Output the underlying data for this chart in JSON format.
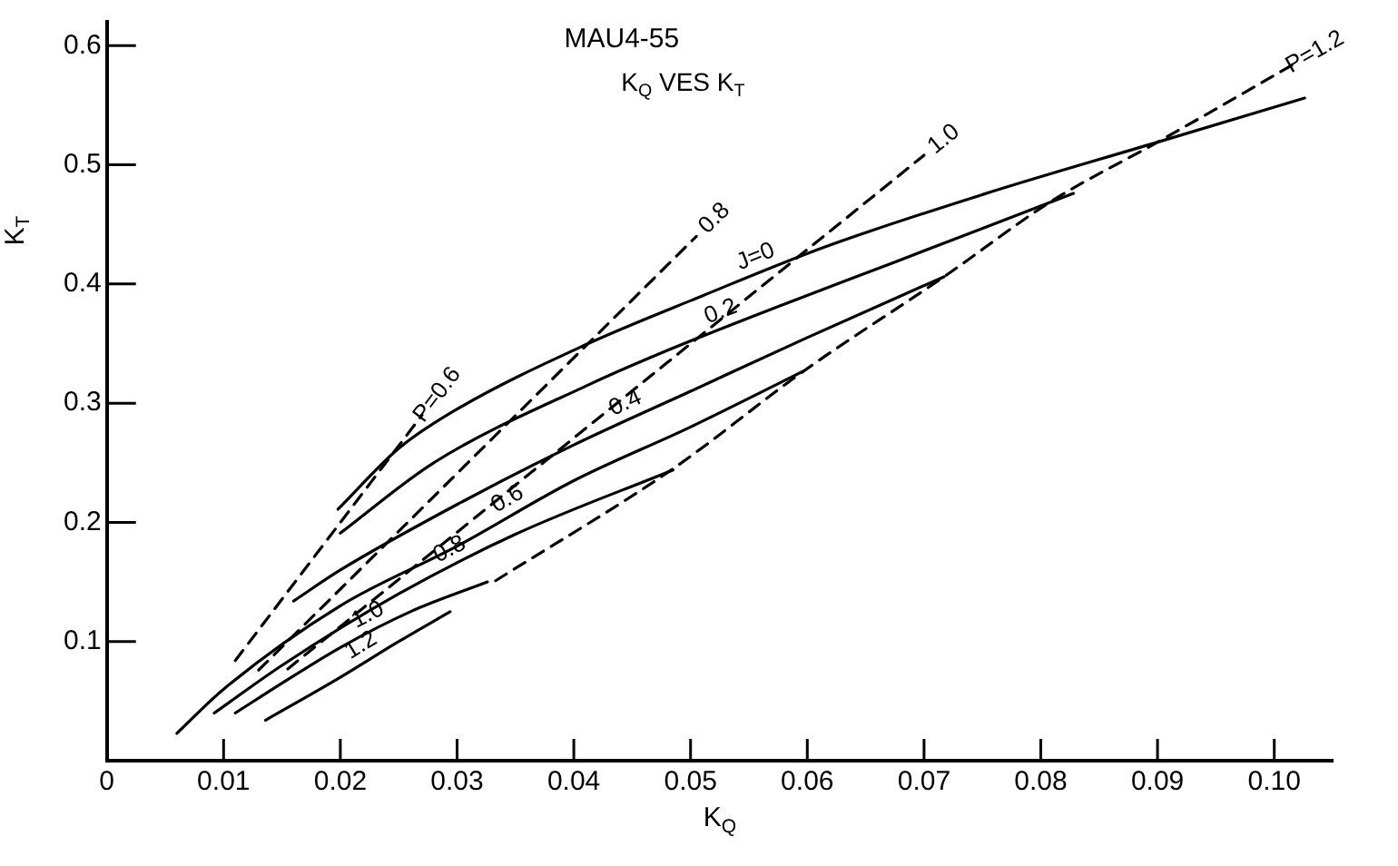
{
  "chart_data": {
    "type": "line",
    "title": "MAU4-55",
    "subtitle": "K$_{Q}$ VES K$_{T}$",
    "xlabel": "K$_{Q}$",
    "ylabel": "K$_{T}$",
    "xlim": [
      0,
      0.105
    ],
    "ylim": [
      0,
      0.62
    ],
    "xticks": [
      0,
      0.01,
      0.02,
      0.03,
      0.04,
      0.05,
      0.06,
      0.07,
      0.08,
      0.09,
      {
        "value": 0.1,
        "label": "0.10"
      }
    ],
    "yticks": [
      0.1,
      0.2,
      0.3,
      0.4,
      0.5,
      0.6
    ],
    "grid": false,
    "legend": false,
    "marker": "none",
    "series": [
      {
        "name": "J=0",
        "color": "#000000",
        "line_style": "solid",
        "x": [
          0.0198,
          0.025,
          0.03,
          0.041,
          0.051,
          0.0612,
          0.075,
          0.09,
          0.1026
        ],
        "values": [
          0.211,
          0.262,
          0.295,
          0.349,
          0.39,
          0.43,
          0.475,
          0.519,
          0.556
        ]
      },
      {
        "name": "0.2",
        "color": "#000000",
        "line_style": "solid",
        "x": [
          0.02,
          0.028,
          0.0414,
          0.0482,
          0.058,
          0.0674,
          0.0828
        ],
        "values": [
          0.191,
          0.25,
          0.316,
          0.345,
          0.383,
          0.418,
          0.476
        ]
      },
      {
        "name": "0.4",
        "color": "#000000",
        "line_style": "solid",
        "x": [
          0.016,
          0.02,
          0.03,
          0.04,
          0.05,
          0.06,
          0.0717
        ],
        "values": [
          0.134,
          0.16,
          0.215,
          0.265,
          0.31,
          0.355,
          0.406
        ]
      },
      {
        "name": "0.6",
        "color": "#000000",
        "line_style": "solid",
        "x": [
          0.006,
          0.01,
          0.02,
          0.03,
          0.04,
          0.05,
          0.0597
        ],
        "values": [
          0.023,
          0.06,
          0.13,
          0.18,
          0.235,
          0.28,
          0.327
        ]
      },
      {
        "name": "0.8",
        "color": "#000000",
        "line_style": "solid",
        "x": [
          0.0092,
          0.015,
          0.025,
          0.035,
          0.0485
        ],
        "values": [
          0.04,
          0.08,
          0.14,
          0.19,
          0.244
        ]
      },
      {
        "name": "1.0",
        "color": "#000000",
        "line_style": "solid",
        "x": [
          0.011,
          0.015,
          0.02,
          0.026,
          0.0326
        ],
        "values": [
          0.04,
          0.065,
          0.095,
          0.125,
          0.15
        ]
      },
      {
        "name": "1.2",
        "color": "#000000",
        "line_style": "solid",
        "x": [
          0.0136,
          0.02,
          0.025,
          0.0294
        ],
        "values": [
          0.034,
          0.07,
          0.1,
          0.125
        ]
      },
      {
        "name": "P=0.6",
        "color": "#000000",
        "line_style": "dashed",
        "x": [
          0.011,
          0.027
        ],
        "values": [
          0.084,
          0.29
        ]
      },
      {
        "name": "0.8",
        "color": "#000000",
        "line_style": "dashed",
        "x": [
          0.013,
          0.0505
        ],
        "values": [
          0.076,
          0.44
        ]
      },
      {
        "name": "1.0",
        "color": "#000000",
        "line_style": "dashed",
        "x": [
          0.0155,
          0.07
        ],
        "values": [
          0.077,
          0.508
        ]
      },
      {
        "name": "P=1.2",
        "color": "#000000",
        "line_style": "dashed",
        "x": [
          0.0333,
          0.0485,
          0.0597,
          0.0717,
          0.081,
          0.09,
          0.1016
        ],
        "values": [
          0.151,
          0.245,
          0.327,
          0.406,
          0.47,
          0.519,
          0.584
        ]
      }
    ]
  }
}
